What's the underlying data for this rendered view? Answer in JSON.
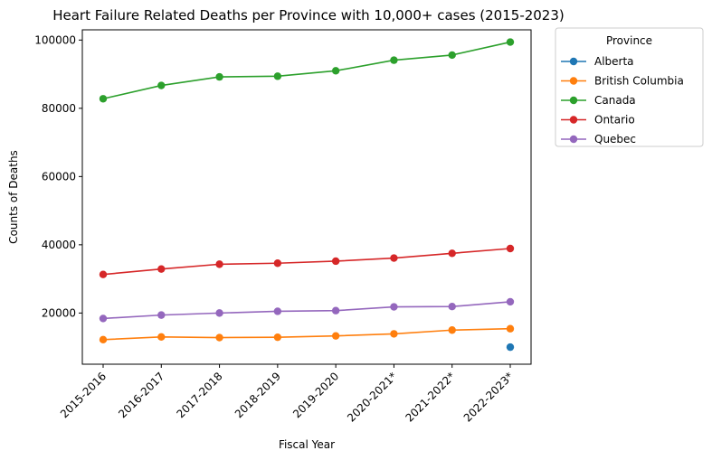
{
  "chart_data": {
    "type": "line",
    "title": "Heart Failure Related Deaths per Province with 10,000+ cases (2015-2023)",
    "xlabel": "Fiscal Year",
    "ylabel": "Counts of Deaths",
    "categories": [
      "2015-2016",
      "2016-2017",
      "2017-2018",
      "2018-2019",
      "2019-2020",
      "2020-2021*",
      "2021-2022*",
      "2022-2023*"
    ],
    "ylim": [
      5000,
      103000
    ],
    "yticks": [
      20000,
      40000,
      60000,
      80000,
      100000
    ],
    "grid": false,
    "legend": {
      "title": "Province",
      "placement": "outside-top-right"
    },
    "series": [
      {
        "name": "Alberta",
        "color": "#1f77b4",
        "values": [
          null,
          null,
          null,
          null,
          null,
          null,
          null,
          10000
        ]
      },
      {
        "name": "British Columbia",
        "color": "#ff7f0e",
        "values": [
          12200,
          13000,
          12800,
          12900,
          13300,
          13900,
          15000,
          15400
        ]
      },
      {
        "name": "Canada",
        "color": "#2ca02c",
        "values": [
          82800,
          86700,
          89200,
          89400,
          91000,
          94100,
          95600,
          99400
        ]
      },
      {
        "name": "Ontario",
        "color": "#d62728",
        "values": [
          31300,
          32900,
          34300,
          34600,
          35200,
          36100,
          37500,
          38900
        ]
      },
      {
        "name": "Quebec",
        "color": "#9467bd",
        "values": [
          18400,
          19400,
          20000,
          20500,
          20700,
          21800,
          21900,
          23300
        ]
      }
    ]
  }
}
